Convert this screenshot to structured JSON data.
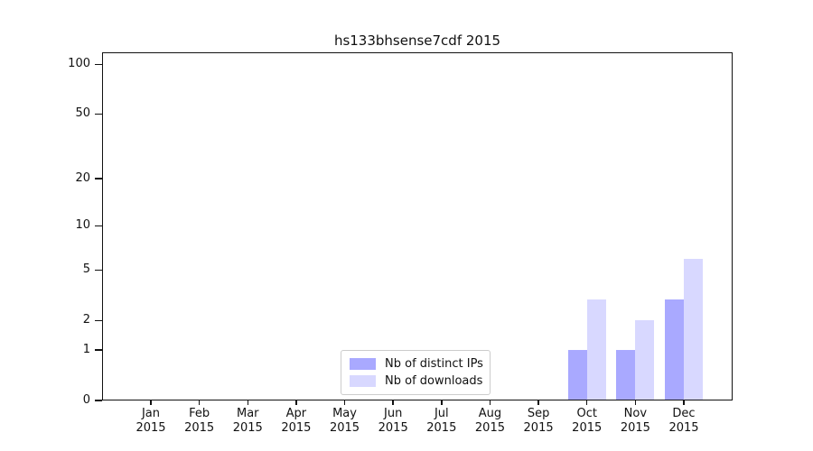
{
  "figure": {
    "background": "#ffffff"
  },
  "chart_data": {
    "type": "bar",
    "title": "hs133bhsense7cdf 2015",
    "categories": [
      "Jan",
      "Feb",
      "Mar",
      "Apr",
      "May",
      "Jun",
      "Jul",
      "Aug",
      "Sep",
      "Oct",
      "Nov",
      "Dec"
    ],
    "category_year_label": "2015",
    "series": [
      {
        "name": "Nb of distinct IPs",
        "base_color": "#8888ff",
        "alpha": 0.72,
        "solid_equivalent": "#a9a9ff",
        "values": [
          0,
          0,
          0,
          0,
          0,
          0,
          0,
          0,
          0,
          1,
          1,
          3
        ]
      },
      {
        "name": "Nb of downloads",
        "base_color": "#8888ff",
        "alpha": 0.33,
        "solid_equivalent": "#d8d8ff",
        "values": [
          0,
          0,
          0,
          0,
          0,
          0,
          0,
          0,
          0,
          3,
          2,
          6
        ]
      }
    ],
    "y_axis": {
      "scale": "log1p",
      "tick_labels": [
        0,
        1,
        2,
        5,
        10,
        20,
        50,
        100
      ],
      "major_gridline_values": [
        1,
        10,
        100
      ],
      "minor_gridline_values": [
        2,
        3,
        4,
        5,
        6,
        7,
        8,
        9,
        20,
        30,
        40,
        50,
        60,
        70,
        80,
        90
      ],
      "max": 118
    },
    "x_axis": {
      "label": "",
      "tick_count": 12
    },
    "legend": {
      "position": "lower-center-left",
      "border_color": "#cccccc",
      "background": "#ffffff"
    },
    "grid": {
      "enabled": true,
      "major_color": "#c9c9c9",
      "minor_color": "#ebebeb"
    }
  }
}
